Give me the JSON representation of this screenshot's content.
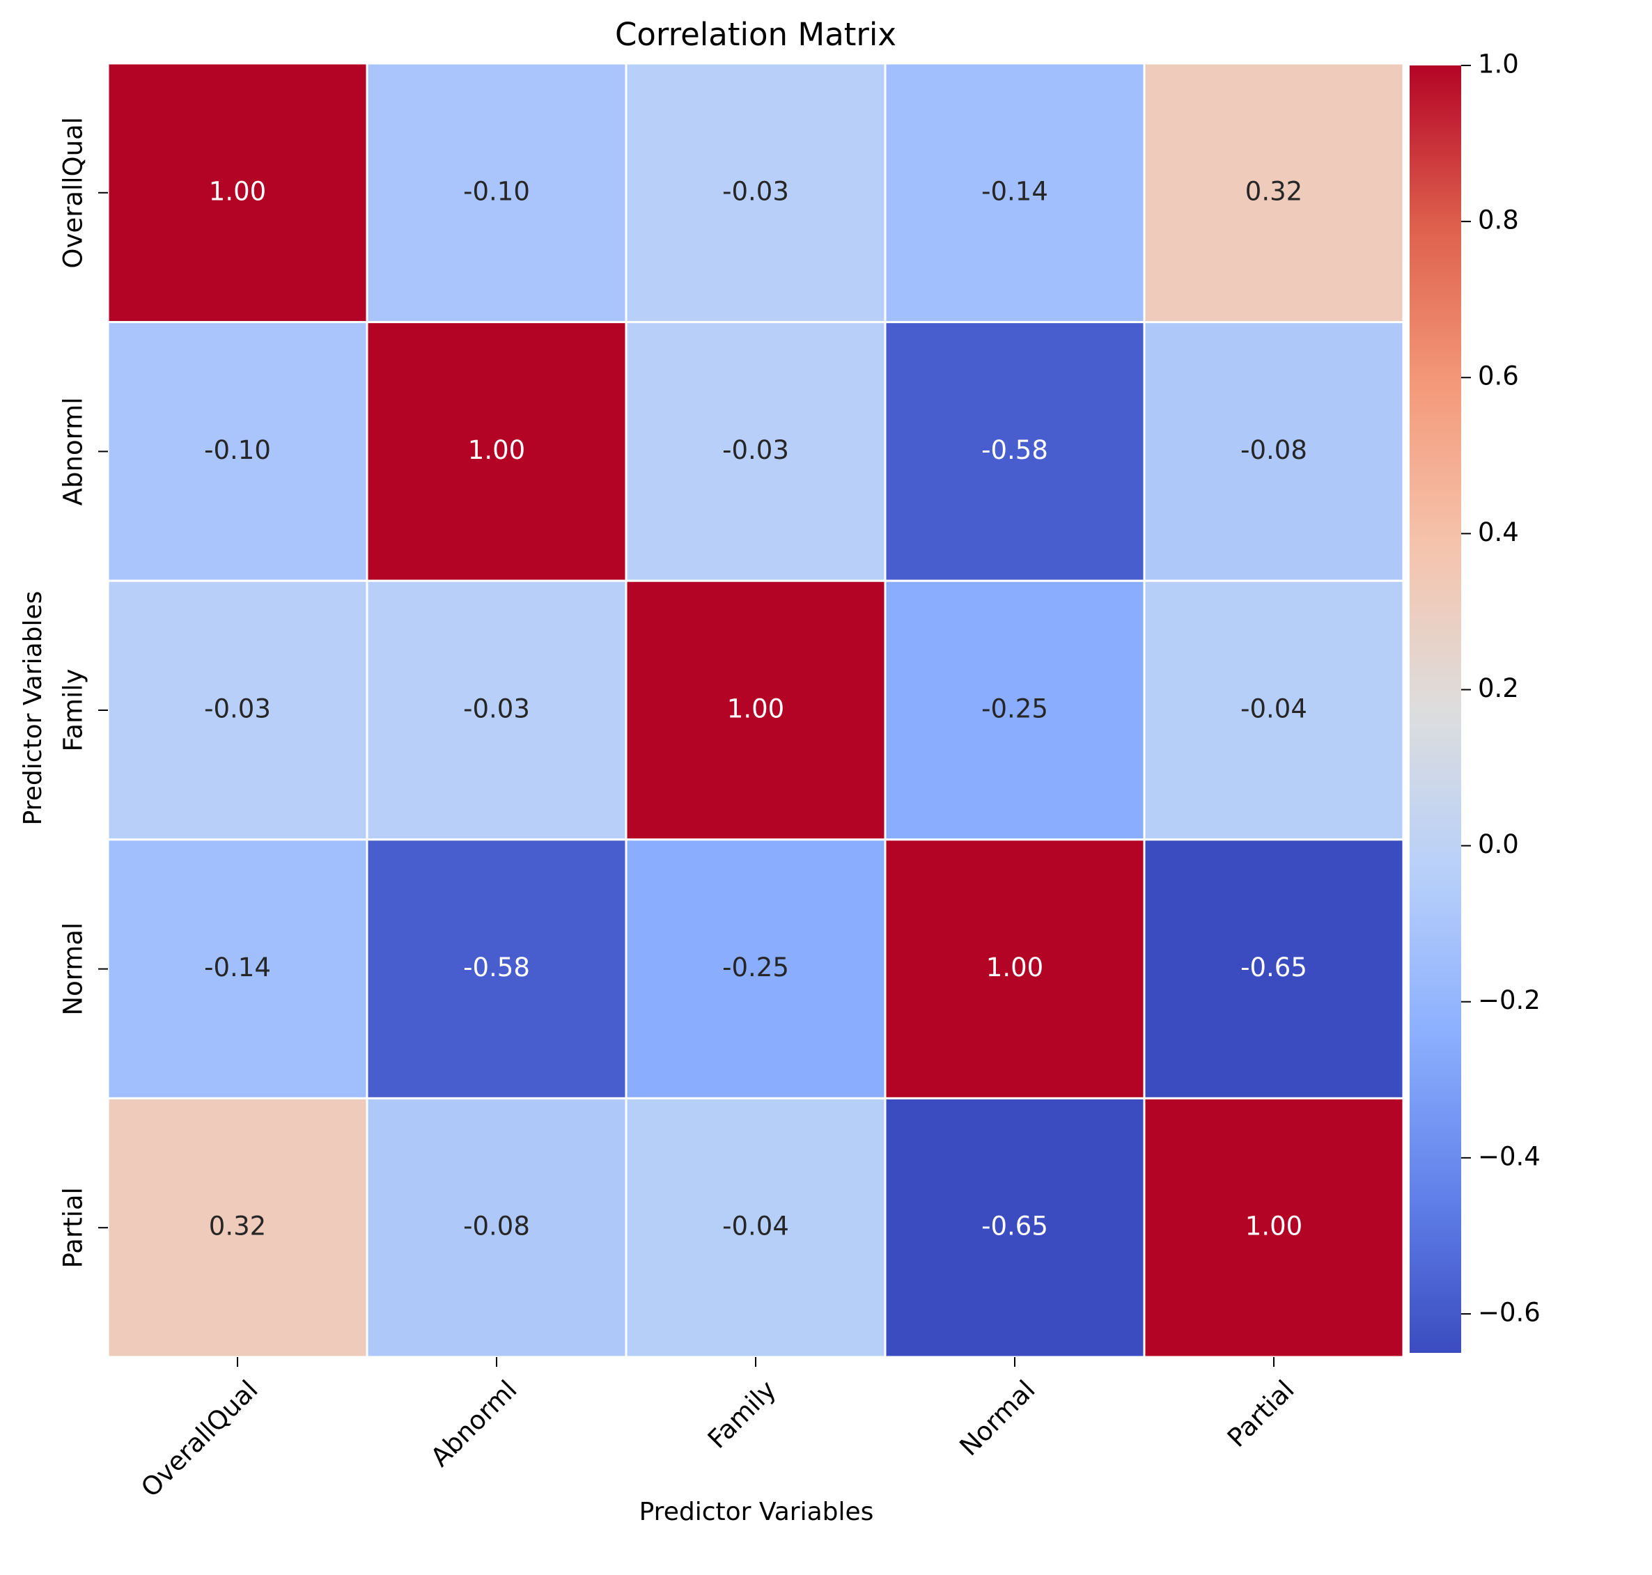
{
  "chart_data": {
    "type": "heatmap",
    "title": "Correlation Matrix",
    "xlabel": "Predictor Variables",
    "ylabel": "Predictor Variables",
    "x_categories": [
      "OverallQual",
      "Abnorml",
      "Family",
      "Normal",
      "Partial"
    ],
    "y_categories": [
      "OverallQual",
      "Abnorml",
      "Family",
      "Normal",
      "Partial"
    ],
    "values": [
      [
        1.0,
        -0.1,
        -0.03,
        -0.14,
        0.32
      ],
      [
        -0.1,
        1.0,
        -0.03,
        -0.58,
        -0.08
      ],
      [
        -0.03,
        -0.03,
        1.0,
        -0.25,
        -0.04
      ],
      [
        -0.14,
        -0.58,
        -0.25,
        1.0,
        -0.65
      ],
      [
        0.32,
        -0.08,
        -0.04,
        -0.65,
        1.0
      ]
    ],
    "annotation_format": "2 decimals",
    "colormap": "coolwarm",
    "vmin": -0.65,
    "vmax": 1.0,
    "colorbar_ticks": [
      1.0,
      0.8,
      0.6,
      0.4,
      0.2,
      0.0,
      -0.2,
      -0.4,
      -0.6
    ],
    "colorbar_tick_labels": [
      "1.0",
      "0.8",
      "0.6",
      "0.4",
      "0.2",
      "0.0",
      "−0.2",
      "−0.4",
      "−0.6"
    ],
    "cell_border_color": "#ffffff",
    "x_tick_rotation_degrees": 45
  }
}
